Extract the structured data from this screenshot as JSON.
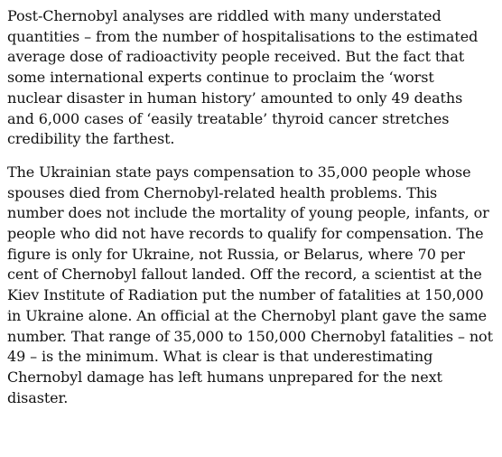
{
  "article": {
    "paragraphs": [
      "Post-Chernobyl analyses are riddled with many understated quantities – from the number of hospitalisations to the estimated average dose of radioactivity people received. But the fact that some international experts continue to proclaim the ‘worst nuclear disaster in human history’ amounted to only 49 deaths and 6,000 cases of ‘easily treatable’ thyroid cancer stretches credibility the farthest.",
      "The Ukrainian state pays compensation to 35,000 people whose spouses died from Chernobyl-related health problems. This number does not include the mortality of young people, infants, or people who did not have records to qualify for compensation. The figure is only for Ukraine, not Russia, or Belarus, where 70 per cent of Chernobyl fallout landed. Off the record, a scientist at the Kiev Institute of Radiation put the number of fatalities at 150,000 in Ukraine alone. An official at the Chernobyl plant gave the same number. That range of 35,000 to 150,000 Chernobyl fatalities – not 49 – is the minimum. What is clear is that underestimating Chernobyl damage has left humans unprepared for the next disaster."
    ]
  }
}
